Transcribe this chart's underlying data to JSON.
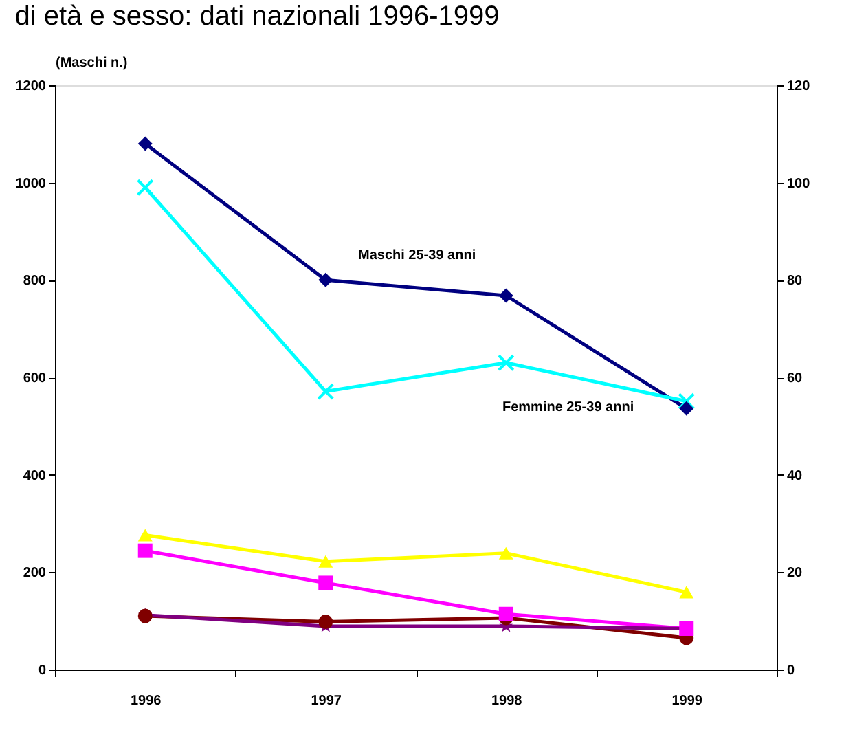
{
  "chart_data": {
    "type": "line",
    "title": "di età e sesso: dati nazionali 1996-1999",
    "ylabel": "(Maschi n.)",
    "categories": [
      "1996",
      "1997",
      "1998",
      "1999"
    ],
    "series": [
      {
        "color": "#000080",
        "marker": "diamond",
        "values": [
          1080,
          800,
          768,
          536
        ]
      },
      {
        "color": "#00ffff",
        "marker": "cross",
        "values": [
          990,
          571,
          630,
          551
        ]
      },
      {
        "color": "#ffff00",
        "marker": "triangle",
        "values": [
          276,
          222,
          239,
          159
        ]
      },
      {
        "color": "#ff00ff",
        "marker": "square",
        "values": [
          244,
          178,
          114,
          84
        ]
      },
      {
        "color": "#800000",
        "marker": "circle",
        "values": [
          110,
          98,
          106,
          65
        ]
      },
      {
        "color": "#800080",
        "marker": "star",
        "values": [
          112,
          89,
          89,
          84
        ]
      }
    ],
    "ylim": [
      0,
      1200
    ],
    "yticks": [
      0,
      200,
      400,
      600,
      800,
      1000,
      1200
    ],
    "y2lim": [
      0,
      120
    ],
    "y2ticks": [
      0,
      20,
      40,
      60,
      80,
      100,
      120
    ],
    "annotations": [
      "Maschi 25-39 anni",
      "Femmine 25-39 anni"
    ],
    "grid": false
  }
}
